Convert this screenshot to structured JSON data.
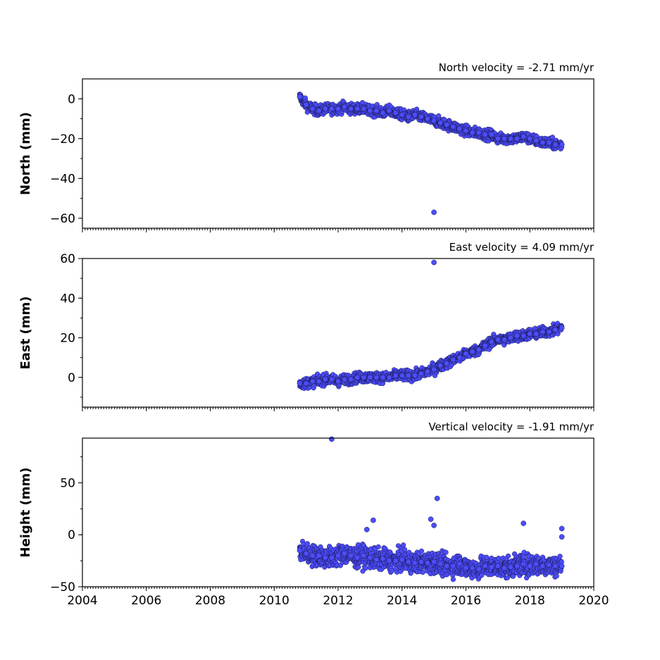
{
  "chart_data": [
    {
      "type": "scatter",
      "title": "North velocity = -2.71 mm/yr",
      "ylabel": "North (mm)",
      "xlim": [
        2004,
        2020
      ],
      "ylim": [
        -65,
        10
      ],
      "yticks": [
        0,
        -20,
        -40,
        -60
      ],
      "ytick_labels": [
        "0",
        "−20",
        "−40",
        "−60"
      ],
      "marker_color": "#4d4dff",
      "series": [
        {
          "x": [
            2010.8,
            2011.0,
            2011.2,
            2011.4,
            2011.6,
            2011.8,
            2012.0,
            2012.2,
            2012.4,
            2012.6,
            2012.8,
            2013.0,
            2013.2,
            2013.4,
            2013.6,
            2013.8,
            2014.0,
            2014.2,
            2014.4,
            2014.6,
            2014.8,
            2015.0,
            2015.2,
            2015.4,
            2015.6,
            2015.8,
            2016.0,
            2016.2,
            2016.4,
            2016.6,
            2016.8,
            2017.0,
            2017.2,
            2017.4,
            2017.6,
            2017.8,
            2018.0,
            2018.2,
            2018.4,
            2018.6,
            2018.8,
            2019.0,
            2015.0
          ],
          "y": [
            1,
            -3,
            -5,
            -6,
            -5,
            -5,
            -5,
            -4,
            -5,
            -5,
            -5,
            -6,
            -6,
            -7,
            -6,
            -7,
            -8,
            -9,
            -8,
            -9,
            -10,
            -11,
            -12,
            -13,
            -14,
            -15,
            -16,
            -17,
            -17,
            -18,
            -18,
            -20,
            -20,
            -20,
            -20,
            -19,
            -20,
            -21,
            -22,
            -22,
            -23,
            -23,
            -57
          ]
        }
      ]
    },
    {
      "type": "scatter",
      "title": "East velocity = 4.09 mm/yr",
      "ylabel": "East (mm)",
      "xlim": [
        2004,
        2020
      ],
      "ylim": [
        -15,
        60
      ],
      "yticks": [
        0,
        20,
        40,
        60
      ],
      "ytick_labels": [
        "0",
        "20",
        "40",
        "60"
      ],
      "marker_color": "#4d4dff",
      "series": [
        {
          "x": [
            2010.8,
            2011.0,
            2011.2,
            2011.4,
            2011.6,
            2011.8,
            2012.0,
            2012.2,
            2012.4,
            2012.6,
            2012.8,
            2013.0,
            2013.2,
            2013.4,
            2013.6,
            2013.8,
            2014.0,
            2014.2,
            2014.4,
            2014.6,
            2014.8,
            2015.0,
            2015.2,
            2015.4,
            2015.6,
            2015.8,
            2016.0,
            2016.2,
            2016.4,
            2016.6,
            2016.8,
            2017.0,
            2017.2,
            2017.4,
            2017.6,
            2017.8,
            2018.0,
            2018.2,
            2018.4,
            2018.6,
            2018.8,
            2019.0,
            2015.0
          ],
          "y": [
            -3,
            -3,
            -2,
            -2,
            -1,
            -1,
            -2,
            -1,
            -1,
            0,
            0,
            0,
            0,
            0,
            0,
            1,
            1,
            1,
            1,
            2,
            3,
            4,
            6,
            7,
            9,
            10,
            12,
            13,
            14,
            16,
            18,
            19,
            19,
            20,
            21,
            21,
            22,
            22,
            23,
            23,
            24,
            25,
            58
          ]
        }
      ]
    },
    {
      "type": "scatter",
      "title": "Vertical velocity = -1.91 mm/yr",
      "ylabel": "Height (mm)",
      "xlim": [
        2004,
        2020
      ],
      "ylim": [
        -50,
        93
      ],
      "yticks": [
        50,
        0,
        -50
      ],
      "ytick_labels": [
        "50",
        "0",
        "−50"
      ],
      "xticks": [
        2004,
        2006,
        2008,
        2010,
        2012,
        2014,
        2016,
        2018,
        2020
      ],
      "xtick_labels": [
        "2004",
        "2006",
        "2008",
        "2010",
        "2012",
        "2014",
        "2016",
        "2018",
        "2020"
      ],
      "marker_color": "#4d4dff",
      "series": [
        {
          "x": [
            2010.8,
            2011.0,
            2011.2,
            2011.4,
            2011.6,
            2011.8,
            2012.0,
            2012.2,
            2012.4,
            2012.6,
            2012.8,
            2013.0,
            2013.2,
            2013.4,
            2013.6,
            2013.8,
            2014.0,
            2014.2,
            2014.4,
            2014.6,
            2014.8,
            2015.0,
            2015.2,
            2015.4,
            2015.6,
            2015.8,
            2016.0,
            2016.2,
            2016.4,
            2016.6,
            2016.8,
            2017.0,
            2017.2,
            2017.4,
            2017.6,
            2017.8,
            2018.0,
            2018.2,
            2018.4,
            2018.6,
            2018.8,
            2019.0,
            2011.8,
            2015.1,
            2014.9,
            2015.0,
            2012.9,
            2013.1,
            2017.8,
            2019.0,
            2019.0
          ],
          "y": [
            -15,
            -18,
            -20,
            -20,
            -22,
            -22,
            -20,
            -18,
            -20,
            -22,
            -20,
            -22,
            -24,
            -23,
            -25,
            -25,
            -24,
            -26,
            -27,
            -26,
            -27,
            -26,
            -28,
            -30,
            -30,
            -28,
            -32,
            -32,
            -33,
            -30,
            -31,
            -30,
            -32,
            -31,
            -30,
            -28,
            -30,
            -28,
            -30,
            -29,
            -30,
            -30,
            92,
            35,
            15,
            9,
            5,
            14,
            11,
            6,
            -2
          ]
        }
      ]
    }
  ]
}
